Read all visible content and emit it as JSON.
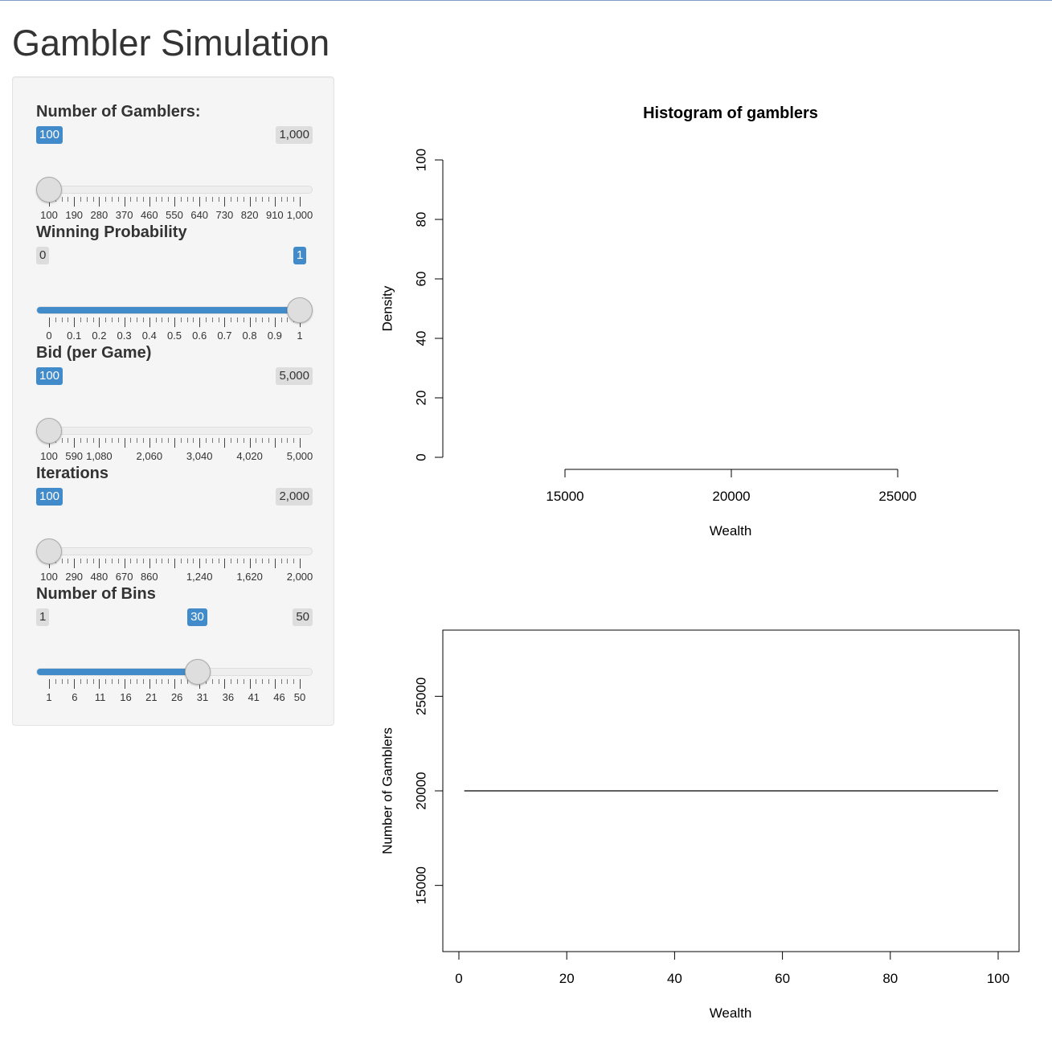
{
  "title": "Gambler Simulation",
  "sliders": [
    {
      "label": "Number of Gamblers:",
      "min": 100,
      "max": 1000,
      "value": 100,
      "min_label": "100",
      "max_label": "1,000",
      "value_label": "100",
      "tick_labels": [
        "100",
        "190",
        "280",
        "370",
        "460",
        "550",
        "640",
        "730",
        "820",
        "910",
        "1,000"
      ]
    },
    {
      "label": "Winning Probability",
      "min": 0,
      "max": 1,
      "value": 1,
      "min_label": "0",
      "max_label": "1",
      "value_label": "1",
      "tick_labels": [
        "0",
        "0.1",
        "0.2",
        "0.3",
        "0.4",
        "0.5",
        "0.6",
        "0.7",
        "0.8",
        "0.9",
        "1"
      ]
    },
    {
      "label": "Bid (per Game)",
      "min": 100,
      "max": 5000,
      "value": 100,
      "min_label": "100",
      "max_label": "5,000",
      "value_label": "100",
      "tick_labels": [
        "100",
        "590",
        "1,080",
        "2,060",
        "3,040",
        "4,020",
        "5,000"
      ]
    },
    {
      "label": "Iterations",
      "min": 100,
      "max": 2000,
      "value": 100,
      "min_label": "100",
      "max_label": "2,000",
      "value_label": "100",
      "tick_labels": [
        "100",
        "290",
        "480",
        "670",
        "860",
        "1,240",
        "1,620",
        "2,000"
      ]
    },
    {
      "label": "Number of Bins",
      "min": 1,
      "max": 50,
      "value": 30,
      "min_label": "1",
      "max_label": "50",
      "value_label": "30",
      "tick_labels": [
        "1",
        "6",
        "11",
        "16",
        "21",
        "26",
        "31",
        "36",
        "41",
        "46",
        "50"
      ]
    }
  ],
  "colors": {
    "accent": "#428bca",
    "panel_bg": "#f5f5f5",
    "minmax_bg": "#dddddd",
    "track_bg": "#eeeeee"
  },
  "chart_data": [
    {
      "type": "bar",
      "title": "Histogram of gamblers",
      "xlabel": "Wealth",
      "ylabel": "Density",
      "xlim": [
        15000,
        25000
      ],
      "ylim": [
        0,
        100
      ],
      "x_ticks": [
        "15000",
        "20000",
        "25000"
      ],
      "y_ticks": [
        "0",
        "20",
        "40",
        "60",
        "80",
        "100"
      ],
      "values": [],
      "grid": false,
      "box": false
    },
    {
      "type": "line",
      "title": "",
      "xlabel": "Wealth",
      "ylabel": "Number of Gamblers",
      "xlim": [
        0,
        100
      ],
      "ylim": [
        11500,
        28500
      ],
      "x_ticks": [
        "0",
        "20",
        "40",
        "60",
        "80",
        "100"
      ],
      "y_ticks": [
        "15000",
        "20000",
        "25000"
      ],
      "series": [
        {
          "x": [
            1,
            100
          ],
          "y": [
            20000,
            20000
          ]
        }
      ],
      "grid": false,
      "box": true
    }
  ]
}
